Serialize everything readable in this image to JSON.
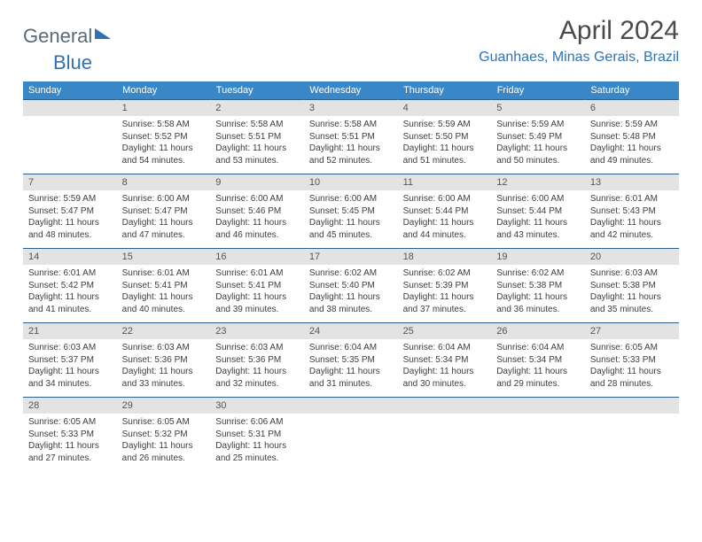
{
  "brand": {
    "word1": "General",
    "word2": "Blue"
  },
  "title": {
    "month": "April 2024",
    "location": "Guanhaes, Minas Gerais, Brazil"
  },
  "colors": {
    "header_bg": "#3a87c8",
    "header_text": "#ffffff",
    "daynum_bg": "#e3e3e3",
    "row_border": "#2f5e8a",
    "brand_gray": "#5a6a76",
    "brand_blue": "#2f73b4",
    "title_color": "#4a4a4a",
    "body_text": "#3d3d3d",
    "page_bg": "#ffffff"
  },
  "typography": {
    "month_fontsize": 30,
    "location_fontsize": 16,
    "header_fontsize": 11,
    "daynum_fontsize": 11,
    "body_fontsize": 10
  },
  "layout": {
    "columns": 7,
    "rows": 5,
    "first_weekday_offset": 1
  },
  "weekdays": [
    "Sunday",
    "Monday",
    "Tuesday",
    "Wednesday",
    "Thursday",
    "Friday",
    "Saturday"
  ],
  "days": [
    {
      "n": 1,
      "sunrise": "5:58 AM",
      "sunset": "5:52 PM",
      "daylight": "11 hours and 54 minutes."
    },
    {
      "n": 2,
      "sunrise": "5:58 AM",
      "sunset": "5:51 PM",
      "daylight": "11 hours and 53 minutes."
    },
    {
      "n": 3,
      "sunrise": "5:58 AM",
      "sunset": "5:51 PM",
      "daylight": "11 hours and 52 minutes."
    },
    {
      "n": 4,
      "sunrise": "5:59 AM",
      "sunset": "5:50 PM",
      "daylight": "11 hours and 51 minutes."
    },
    {
      "n": 5,
      "sunrise": "5:59 AM",
      "sunset": "5:49 PM",
      "daylight": "11 hours and 50 minutes."
    },
    {
      "n": 6,
      "sunrise": "5:59 AM",
      "sunset": "5:48 PM",
      "daylight": "11 hours and 49 minutes."
    },
    {
      "n": 7,
      "sunrise": "5:59 AM",
      "sunset": "5:47 PM",
      "daylight": "11 hours and 48 minutes."
    },
    {
      "n": 8,
      "sunrise": "6:00 AM",
      "sunset": "5:47 PM",
      "daylight": "11 hours and 47 minutes."
    },
    {
      "n": 9,
      "sunrise": "6:00 AM",
      "sunset": "5:46 PM",
      "daylight": "11 hours and 46 minutes."
    },
    {
      "n": 10,
      "sunrise": "6:00 AM",
      "sunset": "5:45 PM",
      "daylight": "11 hours and 45 minutes."
    },
    {
      "n": 11,
      "sunrise": "6:00 AM",
      "sunset": "5:44 PM",
      "daylight": "11 hours and 44 minutes."
    },
    {
      "n": 12,
      "sunrise": "6:00 AM",
      "sunset": "5:44 PM",
      "daylight": "11 hours and 43 minutes."
    },
    {
      "n": 13,
      "sunrise": "6:01 AM",
      "sunset": "5:43 PM",
      "daylight": "11 hours and 42 minutes."
    },
    {
      "n": 14,
      "sunrise": "6:01 AM",
      "sunset": "5:42 PM",
      "daylight": "11 hours and 41 minutes."
    },
    {
      "n": 15,
      "sunrise": "6:01 AM",
      "sunset": "5:41 PM",
      "daylight": "11 hours and 40 minutes."
    },
    {
      "n": 16,
      "sunrise": "6:01 AM",
      "sunset": "5:41 PM",
      "daylight": "11 hours and 39 minutes."
    },
    {
      "n": 17,
      "sunrise": "6:02 AM",
      "sunset": "5:40 PM",
      "daylight": "11 hours and 38 minutes."
    },
    {
      "n": 18,
      "sunrise": "6:02 AM",
      "sunset": "5:39 PM",
      "daylight": "11 hours and 37 minutes."
    },
    {
      "n": 19,
      "sunrise": "6:02 AM",
      "sunset": "5:38 PM",
      "daylight": "11 hours and 36 minutes."
    },
    {
      "n": 20,
      "sunrise": "6:03 AM",
      "sunset": "5:38 PM",
      "daylight": "11 hours and 35 minutes."
    },
    {
      "n": 21,
      "sunrise": "6:03 AM",
      "sunset": "5:37 PM",
      "daylight": "11 hours and 34 minutes."
    },
    {
      "n": 22,
      "sunrise": "6:03 AM",
      "sunset": "5:36 PM",
      "daylight": "11 hours and 33 minutes."
    },
    {
      "n": 23,
      "sunrise": "6:03 AM",
      "sunset": "5:36 PM",
      "daylight": "11 hours and 32 minutes."
    },
    {
      "n": 24,
      "sunrise": "6:04 AM",
      "sunset": "5:35 PM",
      "daylight": "11 hours and 31 minutes."
    },
    {
      "n": 25,
      "sunrise": "6:04 AM",
      "sunset": "5:34 PM",
      "daylight": "11 hours and 30 minutes."
    },
    {
      "n": 26,
      "sunrise": "6:04 AM",
      "sunset": "5:34 PM",
      "daylight": "11 hours and 29 minutes."
    },
    {
      "n": 27,
      "sunrise": "6:05 AM",
      "sunset": "5:33 PM",
      "daylight": "11 hours and 28 minutes."
    },
    {
      "n": 28,
      "sunrise": "6:05 AM",
      "sunset": "5:33 PM",
      "daylight": "11 hours and 27 minutes."
    },
    {
      "n": 29,
      "sunrise": "6:05 AM",
      "sunset": "5:32 PM",
      "daylight": "11 hours and 26 minutes."
    },
    {
      "n": 30,
      "sunrise": "6:06 AM",
      "sunset": "5:31 PM",
      "daylight": "11 hours and 25 minutes."
    }
  ],
  "labels": {
    "sunrise": "Sunrise:",
    "sunset": "Sunset:",
    "daylight": "Daylight:"
  }
}
